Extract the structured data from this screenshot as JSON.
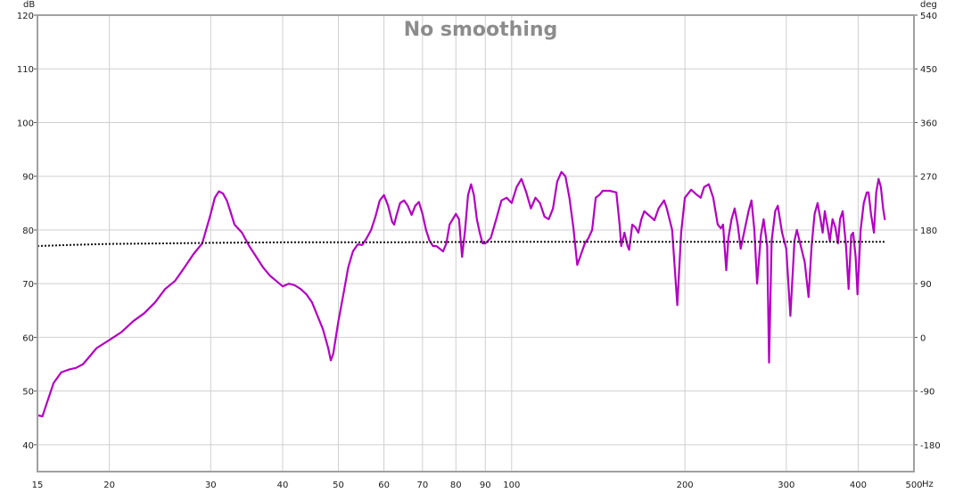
{
  "chart_data": {
    "type": "line",
    "title": "No smoothing",
    "x_scale": "log",
    "xlim": [
      15,
      500
    ],
    "x_unit": "Hz",
    "x_ticks": [
      15,
      20,
      30,
      40,
      50,
      60,
      70,
      80,
      90,
      100,
      200,
      300,
      400,
      500
    ],
    "y_left_unit": "dB",
    "ylim_left": [
      35,
      120
    ],
    "y_left_ticks": [
      40,
      50,
      60,
      70,
      80,
      90,
      100,
      110,
      120
    ],
    "y_right_unit": "deg",
    "ylim_right": [
      -225,
      540
    ],
    "y_right_ticks": [
      -180,
      -90,
      0,
      90,
      180,
      270,
      360,
      450,
      540
    ],
    "grid": true,
    "colors": {
      "spl": "#b400c3",
      "reference": "#111111",
      "grid": "#cfcfcf",
      "frame": "#a0a0a0"
    },
    "series": [
      {
        "style": "solid",
        "axis": "left",
        "points": [
          [
            15,
            45.5
          ],
          [
            15.3,
            45.3
          ],
          [
            15.6,
            48
          ],
          [
            16,
            51.5
          ],
          [
            16.5,
            53.5
          ],
          [
            17,
            54
          ],
          [
            17.5,
            54.3
          ],
          [
            18,
            55
          ],
          [
            18.5,
            56.5
          ],
          [
            19,
            58
          ],
          [
            20,
            59.5
          ],
          [
            21,
            61
          ],
          [
            22,
            63
          ],
          [
            23,
            64.5
          ],
          [
            24,
            66.5
          ],
          [
            25,
            69
          ],
          [
            26,
            70.5
          ],
          [
            27,
            73
          ],
          [
            28,
            75.5
          ],
          [
            29,
            77.5
          ],
          [
            30,
            83
          ],
          [
            30.5,
            86
          ],
          [
            31,
            87.2
          ],
          [
            31.5,
            86.8
          ],
          [
            32,
            85.5
          ],
          [
            32.5,
            83.3
          ],
          [
            33,
            81
          ],
          [
            34,
            79.5
          ],
          [
            35,
            77
          ],
          [
            36,
            75
          ],
          [
            37,
            73
          ],
          [
            38,
            71.5
          ],
          [
            39,
            70.5
          ],
          [
            40,
            69.5
          ],
          [
            41,
            70
          ],
          [
            42,
            69.7
          ],
          [
            43,
            69
          ],
          [
            44,
            68
          ],
          [
            45,
            66.5
          ],
          [
            46,
            64
          ],
          [
            47,
            61.5
          ],
          [
            48,
            58
          ],
          [
            48.5,
            55.7
          ],
          [
            49,
            57
          ],
          [
            50,
            63
          ],
          [
            51,
            68
          ],
          [
            52,
            73
          ],
          [
            53,
            76
          ],
          [
            54,
            77.3
          ],
          [
            55,
            77.2
          ],
          [
            56,
            78.5
          ],
          [
            57,
            80
          ],
          [
            58,
            82.5
          ],
          [
            59,
            85.5
          ],
          [
            60,
            86.5
          ],
          [
            61,
            84.5
          ],
          [
            62,
            81.5
          ],
          [
            62.5,
            81
          ],
          [
            63,
            82.5
          ],
          [
            64,
            85
          ],
          [
            65,
            85.5
          ],
          [
            66,
            84.5
          ],
          [
            67,
            82.8
          ],
          [
            68,
            84.5
          ],
          [
            69,
            85.2
          ],
          [
            70,
            83
          ],
          [
            71,
            80
          ],
          [
            72,
            78
          ],
          [
            73,
            77
          ],
          [
            74,
            77
          ],
          [
            75,
            76.5
          ],
          [
            76,
            76
          ],
          [
            77,
            77.5
          ],
          [
            78,
            81
          ],
          [
            79,
            82
          ],
          [
            80,
            83
          ],
          [
            81,
            82
          ],
          [
            82,
            75
          ],
          [
            83,
            80
          ],
          [
            84,
            86.5
          ],
          [
            85,
            88.5
          ],
          [
            86,
            86.5
          ],
          [
            87,
            82
          ],
          [
            88,
            79.5
          ],
          [
            89,
            77.5
          ],
          [
            90,
            77.5
          ],
          [
            91,
            78
          ],
          [
            92,
            78.5
          ],
          [
            94,
            82
          ],
          [
            96,
            85.5
          ],
          [
            98,
            86
          ],
          [
            100,
            85
          ],
          [
            102,
            88
          ],
          [
            104,
            89.5
          ],
          [
            106,
            87
          ],
          [
            108,
            84
          ],
          [
            110,
            86
          ],
          [
            112,
            85
          ],
          [
            114,
            82.5
          ],
          [
            116,
            82
          ],
          [
            118,
            84
          ],
          [
            120,
            89
          ],
          [
            122,
            90.8
          ],
          [
            124,
            90
          ],
          [
            126,
            86
          ],
          [
            128,
            80.5
          ],
          [
            130,
            73.5
          ],
          [
            132,
            75.5
          ],
          [
            134,
            77.5
          ],
          [
            136,
            78.5
          ],
          [
            138,
            80
          ],
          [
            140,
            86
          ],
          [
            142,
            86.5
          ],
          [
            144,
            87.3
          ],
          [
            148,
            87.3
          ],
          [
            152,
            87
          ],
          [
            154,
            81
          ],
          [
            155,
            77
          ],
          [
            157,
            79.5
          ],
          [
            159,
            77
          ],
          [
            160,
            76.3
          ],
          [
            162,
            81
          ],
          [
            164,
            80.5
          ],
          [
            166,
            79.5
          ],
          [
            168,
            82
          ],
          [
            170,
            83.5
          ],
          [
            172,
            83
          ],
          [
            175,
            82.3
          ],
          [
            177,
            81.8
          ],
          [
            180,
            84
          ],
          [
            184,
            85.5
          ],
          [
            186,
            84
          ],
          [
            190,
            80
          ],
          [
            194,
            66
          ],
          [
            197,
            79.5
          ],
          [
            200,
            86
          ],
          [
            205,
            87.5
          ],
          [
            210,
            86.5
          ],
          [
            213,
            86
          ],
          [
            216,
            88
          ],
          [
            220,
            88.5
          ],
          [
            224,
            86
          ],
          [
            228,
            81
          ],
          [
            231,
            80.3
          ],
          [
            233,
            81
          ],
          [
            236,
            72.5
          ],
          [
            238,
            78.5
          ],
          [
            241,
            82
          ],
          [
            244,
            84
          ],
          [
            247,
            81
          ],
          [
            250,
            76.5
          ],
          [
            254,
            80
          ],
          [
            258,
            83.5
          ],
          [
            261,
            85.5
          ],
          [
            264,
            80
          ],
          [
            267,
            70
          ],
          [
            271,
            79
          ],
          [
            274,
            82
          ],
          [
            278,
            77
          ],
          [
            280,
            55.3
          ],
          [
            283,
            78
          ],
          [
            287,
            83.5
          ],
          [
            290,
            84.5
          ],
          [
            295,
            79.5
          ],
          [
            300,
            76.5
          ],
          [
            305,
            64
          ],
          [
            310,
            78
          ],
          [
            313,
            80
          ],
          [
            318,
            77
          ],
          [
            323,
            74
          ],
          [
            328,
            67.5
          ],
          [
            332,
            77
          ],
          [
            336,
            83
          ],
          [
            340,
            85
          ],
          [
            344,
            82
          ],
          [
            347,
            79.5
          ],
          [
            350,
            83.5
          ],
          [
            354,
            80.5
          ],
          [
            357,
            78
          ],
          [
            361,
            82
          ],
          [
            365,
            80.5
          ],
          [
            369,
            77.5
          ],
          [
            372,
            82
          ],
          [
            376,
            83.5
          ],
          [
            381,
            77
          ],
          [
            385,
            69
          ],
          [
            389,
            79
          ],
          [
            392,
            79.5
          ],
          [
            396,
            75
          ],
          [
            399,
            68
          ],
          [
            404,
            80
          ],
          [
            409,
            85
          ],
          [
            414,
            87
          ],
          [
            417,
            87
          ],
          [
            421,
            83
          ],
          [
            426,
            79.5
          ],
          [
            430,
            87
          ],
          [
            434,
            89.5
          ],
          [
            438,
            88
          ],
          [
            442,
            84
          ],
          [
            445,
            82
          ]
        ]
      },
      {
        "style": "dotted",
        "axis": "left",
        "points": [
          [
            15,
            77
          ],
          [
            17,
            77.2
          ],
          [
            20,
            77.4
          ],
          [
            25,
            77.5
          ],
          [
            30,
            77.6
          ],
          [
            40,
            77.7
          ],
          [
            60,
            77.7
          ],
          [
            100,
            77.8
          ],
          [
            200,
            77.8
          ],
          [
            300,
            77.8
          ],
          [
            445,
            77.8
          ]
        ]
      }
    ]
  }
}
